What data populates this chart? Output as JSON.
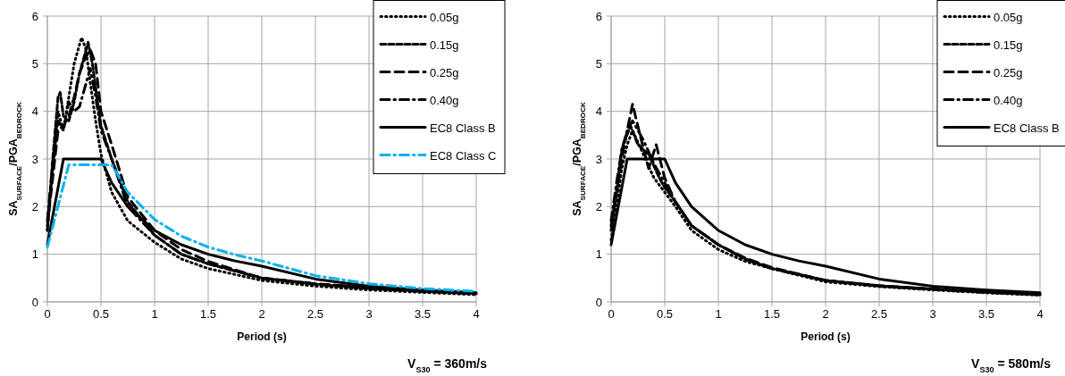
{
  "chart_data": [
    {
      "type": "line",
      "xlabel": "Period (s)",
      "ylabel": "SA$_{SURFACE}$/PGA$_{BEDROCK}$",
      "annotations": [
        "V$_{S30}$ = 360m/s"
      ],
      "xlim": [
        0,
        4
      ],
      "ylim": [
        0,
        6
      ],
      "xticks": [
        0,
        0.5,
        1,
        1.5,
        2,
        2.5,
        3,
        3.5,
        4
      ],
      "yticks": [
        0,
        1,
        2,
        3,
        4,
        5,
        6
      ],
      "grid": true,
      "legend": "top right",
      "marker": "none",
      "series": [
        {
          "name": "0.05g",
          "color": "#000000",
          "line_style": "dotted",
          "x": [
            0,
            0.05,
            0.1,
            0.15,
            0.2,
            0.25,
            0.3,
            0.32,
            0.36,
            0.4,
            0.45,
            0.5,
            0.6,
            0.75,
            1,
            1.25,
            1.5,
            2,
            2.5,
            3,
            3.5,
            4
          ],
          "values": [
            1.5,
            2.8,
            4.0,
            3.6,
            4.3,
            5.0,
            5.4,
            5.55,
            5.3,
            4.6,
            3.8,
            3.1,
            2.3,
            1.7,
            1.25,
            0.9,
            0.7,
            0.45,
            0.33,
            0.25,
            0.2,
            0.15
          ]
        },
        {
          "name": "0.15g",
          "color": "#000000",
          "line_style": "dashed",
          "x": [
            0,
            0.05,
            0.1,
            0.12,
            0.15,
            0.2,
            0.25,
            0.3,
            0.35,
            0.38,
            0.42,
            0.45,
            0.5,
            0.6,
            0.75,
            1,
            1.25,
            1.5,
            2,
            2.5,
            3,
            3.5,
            4
          ],
          "values": [
            1.5,
            3.0,
            4.3,
            4.4,
            3.9,
            3.8,
            4.2,
            4.8,
            5.2,
            5.45,
            5.0,
            4.5,
            3.7,
            3.0,
            2.1,
            1.4,
            1.0,
            0.8,
            0.5,
            0.37,
            0.28,
            0.22,
            0.17
          ]
        },
        {
          "name": "0.25g",
          "color": "#000000",
          "line_style": "longdashed",
          "x": [
            0,
            0.05,
            0.1,
            0.15,
            0.2,
            0.25,
            0.3,
            0.35,
            0.4,
            0.45,
            0.5,
            0.6,
            0.75,
            1,
            1.25,
            1.5,
            2,
            2.5,
            3,
            3.5,
            4
          ],
          "values": [
            1.6,
            2.6,
            3.6,
            3.7,
            3.9,
            4.3,
            4.8,
            5.1,
            5.3,
            5.0,
            4.0,
            3.3,
            2.2,
            1.5,
            1.1,
            0.85,
            0.5,
            0.38,
            0.3,
            0.23,
            0.18
          ]
        },
        {
          "name": "0.40g",
          "color": "#000000",
          "line_style": "dashdot",
          "x": [
            0,
            0.05,
            0.1,
            0.15,
            0.2,
            0.25,
            0.3,
            0.35,
            0.4,
            0.45,
            0.5,
            0.6,
            0.75,
            1,
            1.25,
            1.5,
            2,
            2.5,
            3,
            3.5,
            4
          ],
          "values": [
            1.7,
            2.9,
            3.8,
            3.6,
            4.2,
            4.0,
            4.1,
            4.5,
            4.9,
            4.3,
            3.6,
            3.0,
            2.0,
            1.4,
            1.0,
            0.8,
            0.5,
            0.38,
            0.3,
            0.23,
            0.18
          ]
        },
        {
          "name": "EC8 Class B",
          "color": "#000000",
          "line_style": "solid",
          "x": [
            0,
            0.15,
            0.5,
            0.6,
            0.75,
            1,
            1.25,
            1.5,
            1.75,
            2,
            2.5,
            3,
            3.5,
            4
          ],
          "values": [
            1.2,
            3.0,
            3.0,
            2.5,
            2.0,
            1.5,
            1.2,
            1.0,
            0.86,
            0.75,
            0.48,
            0.33,
            0.25,
            0.19
          ]
        },
        {
          "name": "EC8 Class C",
          "color": "#00b0f0",
          "line_style": "dashdot",
          "x": [
            0,
            0.2,
            0.6,
            0.75,
            1,
            1.25,
            1.5,
            1.75,
            2,
            2.5,
            3,
            3.5,
            4
          ],
          "values": [
            1.15,
            2.88,
            2.88,
            2.3,
            1.73,
            1.38,
            1.15,
            0.99,
            0.86,
            0.55,
            0.38,
            0.28,
            0.22
          ]
        }
      ]
    },
    {
      "type": "line",
      "xlabel": "Period (s)",
      "ylabel": "SA$_{SURFACE}$/PGA$_{BEDROCK}$",
      "annotations": [
        "V$_{S30}$ = 580m/s"
      ],
      "xlim": [
        0,
        4
      ],
      "ylim": [
        0,
        6
      ],
      "xticks": [
        0,
        0.5,
        1,
        1.5,
        2,
        2.5,
        3,
        3.5,
        4
      ],
      "yticks": [
        0,
        1,
        2,
        3,
        4,
        5,
        6
      ],
      "grid": true,
      "legend": "top right",
      "marker": "none",
      "series": [
        {
          "name": "0.05g",
          "color": "#000000",
          "line_style": "dotted",
          "x": [
            0,
            0.05,
            0.1,
            0.15,
            0.2,
            0.3,
            0.4,
            0.5,
            0.6,
            0.75,
            1,
            1.25,
            1.5,
            2,
            2.5,
            3,
            3.5,
            4
          ],
          "values": [
            1.3,
            2.0,
            2.8,
            3.3,
            3.6,
            3.1,
            2.6,
            2.3,
            2.0,
            1.5,
            1.1,
            0.85,
            0.7,
            0.42,
            0.32,
            0.25,
            0.19,
            0.14
          ]
        },
        {
          "name": "0.15g",
          "color": "#000000",
          "line_style": "dashed",
          "x": [
            0,
            0.05,
            0.1,
            0.18,
            0.25,
            0.35,
            0.45,
            0.5,
            0.6,
            0.75,
            1,
            1.25,
            1.5,
            2,
            2.5,
            3,
            3.5,
            4
          ],
          "values": [
            1.5,
            2.3,
            3.2,
            3.7,
            3.3,
            3.1,
            2.6,
            2.4,
            2.1,
            1.6,
            1.2,
            0.9,
            0.7,
            0.45,
            0.34,
            0.27,
            0.2,
            0.15
          ]
        },
        {
          "name": "0.25g",
          "color": "#000000",
          "line_style": "longdashed",
          "x": [
            0,
            0.05,
            0.1,
            0.15,
            0.2,
            0.27,
            0.35,
            0.42,
            0.5,
            0.6,
            0.75,
            1,
            1.25,
            1.5,
            2,
            2.5,
            3,
            3.5,
            4
          ],
          "values": [
            1.6,
            2.3,
            3.0,
            3.6,
            4.15,
            3.5,
            2.8,
            3.3,
            2.6,
            2.1,
            1.6,
            1.2,
            0.92,
            0.72,
            0.45,
            0.34,
            0.27,
            0.21,
            0.16
          ]
        },
        {
          "name": "0.40g",
          "color": "#000000",
          "line_style": "dashdot",
          "x": [
            0,
            0.05,
            0.1,
            0.15,
            0.2,
            0.3,
            0.4,
            0.5,
            0.6,
            0.75,
            1,
            1.25,
            1.5,
            2,
            2.5,
            3,
            3.5,
            4
          ],
          "values": [
            1.7,
            2.5,
            3.2,
            3.6,
            3.8,
            3.4,
            2.9,
            2.5,
            2.1,
            1.6,
            1.2,
            0.9,
            0.7,
            0.45,
            0.33,
            0.26,
            0.2,
            0.15
          ]
        },
        {
          "name": "EC8 Class B",
          "color": "#000000",
          "line_style": "solid",
          "x": [
            0,
            0.15,
            0.5,
            0.6,
            0.75,
            1,
            1.25,
            1.5,
            1.75,
            2,
            2.5,
            3,
            3.5,
            4
          ],
          "values": [
            1.2,
            3.0,
            3.0,
            2.5,
            2.0,
            1.5,
            1.2,
            1.0,
            0.86,
            0.75,
            0.48,
            0.33,
            0.25,
            0.19
          ]
        }
      ]
    }
  ]
}
